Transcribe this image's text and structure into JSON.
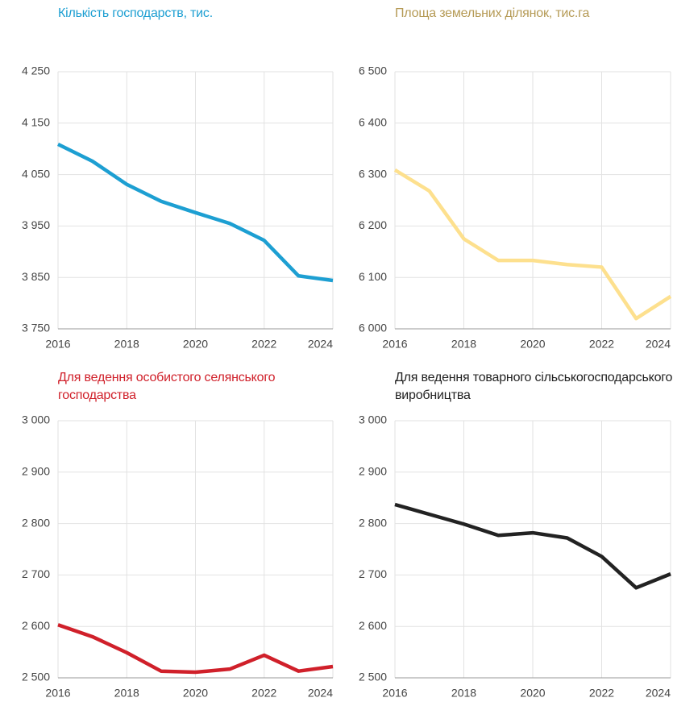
{
  "chart_data": [
    {
      "type": "line",
      "title": "Кількість господарств, тис.",
      "title_color": "#1d9fd2",
      "color": "#1d9fd2",
      "x": [
        2016,
        2017,
        2018,
        2019,
        2020,
        2021,
        2022,
        2023,
        2024
      ],
      "values": [
        4109,
        4076,
        4031,
        3998,
        3976,
        3955,
        3922,
        3853,
        3844
      ],
      "xlim": [
        2016,
        2024
      ],
      "xticks": [
        2016,
        2018,
        2020,
        2022,
        2024
      ],
      "ylim": [
        3750,
        4250
      ],
      "yticks": [
        {
          "value": 3750,
          "label": "3 750"
        },
        {
          "value": 3850,
          "label": "3 850"
        },
        {
          "value": 3950,
          "label": "3 950"
        },
        {
          "value": 4050,
          "label": "4 050"
        },
        {
          "value": 4150,
          "label": "4 150"
        },
        {
          "value": 4250,
          "label": "4 250"
        }
      ],
      "grid": true
    },
    {
      "type": "line",
      "title": "Площа земельних ділянок, тис.га",
      "title_color": "#b59a55",
      "color": "#fde08e",
      "x": [
        2016,
        2017,
        2018,
        2019,
        2020,
        2021,
        2022,
        2023,
        2024
      ],
      "values": [
        6309,
        6268,
        6175,
        6133,
        6133,
        6125,
        6120,
        6020,
        6063
      ],
      "xlim": [
        2016,
        2024
      ],
      "xticks": [
        2016,
        2018,
        2020,
        2022,
        2024
      ],
      "ylim": [
        6000,
        6500
      ],
      "yticks": [
        {
          "value": 6000,
          "label": "6 000"
        },
        {
          "value": 6100,
          "label": "6 100"
        },
        {
          "value": 6200,
          "label": "6 200"
        },
        {
          "value": 6300,
          "label": "6 300"
        },
        {
          "value": 6400,
          "label": "6 400"
        },
        {
          "value": 6500,
          "label": "6 500"
        }
      ],
      "grid": true
    },
    {
      "type": "line",
      "title": "Для ведення особистого селянського господарства",
      "title_color": "#d0202a",
      "color": "#d0202a",
      "x": [
        2016,
        2017,
        2018,
        2019,
        2020,
        2021,
        2022,
        2023,
        2024
      ],
      "values": [
        2603,
        2580,
        2549,
        2513,
        2511,
        2517,
        2544,
        2513,
        2522
      ],
      "xlim": [
        2016,
        2024
      ],
      "xticks": [
        2016,
        2018,
        2020,
        2022,
        2024
      ],
      "ylim": [
        2500,
        3000
      ],
      "yticks": [
        {
          "value": 2500,
          "label": "2 500"
        },
        {
          "value": 2600,
          "label": "2 600"
        },
        {
          "value": 2700,
          "label": "2 700"
        },
        {
          "value": 2800,
          "label": "2 800"
        },
        {
          "value": 2900,
          "label": "2 900"
        },
        {
          "value": 3000,
          "label": "3 000"
        }
      ],
      "grid": true
    },
    {
      "type": "line",
      "title": "Для ведення товарного сільськогосподарського виробництва",
      "title_color": "#222222",
      "color": "#222222",
      "x": [
        2016,
        2017,
        2018,
        2019,
        2020,
        2021,
        2022,
        2023,
        2024
      ],
      "values": [
        2837,
        2818,
        2799,
        2777,
        2782,
        2772,
        2736,
        2675,
        2702
      ],
      "xlim": [
        2016,
        2024
      ],
      "xticks": [
        2016,
        2018,
        2020,
        2022,
        2024
      ],
      "ylim": [
        2500,
        3000
      ],
      "yticks": [
        {
          "value": 2500,
          "label": "2 500"
        },
        {
          "value": 2600,
          "label": "2 600"
        },
        {
          "value": 2700,
          "label": "2 700"
        },
        {
          "value": 2800,
          "label": "2 800"
        },
        {
          "value": 2900,
          "label": "2 900"
        },
        {
          "value": 3000,
          "label": "3 000"
        }
      ],
      "grid": true
    }
  ]
}
